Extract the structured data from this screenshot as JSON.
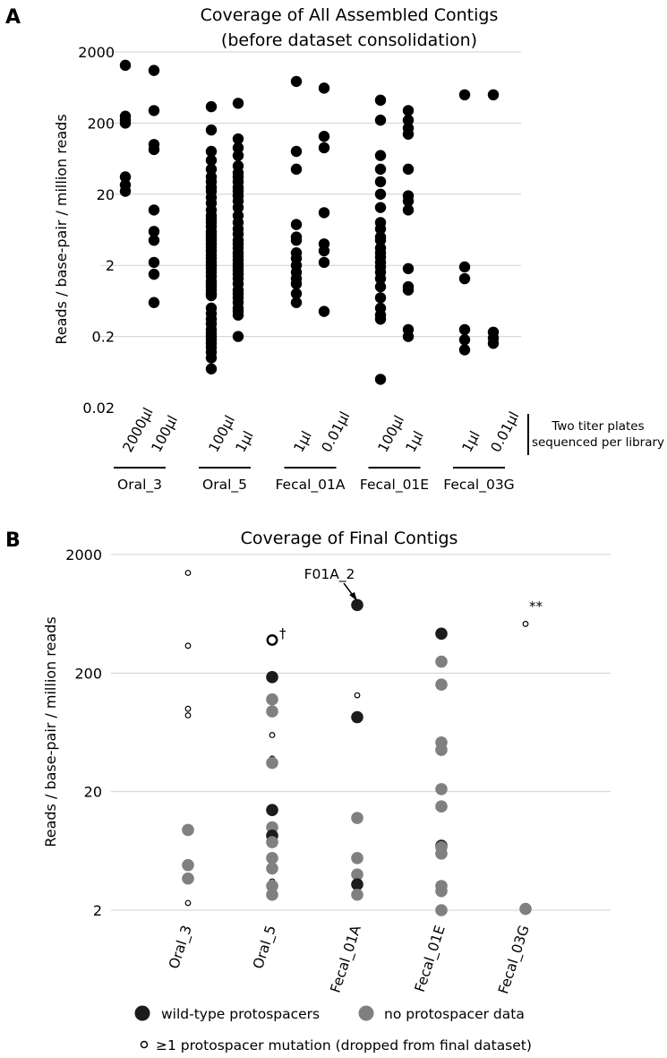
{
  "chart_data": [
    {
      "panel": "A",
      "type": "scatter",
      "title_line1": "Coverage of All Assembled Contigs",
      "title_line2": "(before dataset consolidation)",
      "ylabel": "Reads / base-pair / million reads",
      "yscale": "log",
      "ylim": [
        0.02,
        2000
      ],
      "yticks": [
        0.02,
        0.2,
        2,
        20,
        200,
        2000
      ],
      "ytick_labels": [
        "0.02",
        "0.2",
        "2",
        "20",
        "200",
        "2000"
      ],
      "grid": true,
      "side_note_line1": "Two titer plates",
      "side_note_line2": "sequenced per library",
      "groups": [
        {
          "library": "Oral_3",
          "columns": [
            {
              "label": "2000µl",
              "values": [
                1300,
                250,
                220,
                200,
                35,
                27,
                22
              ]
            },
            {
              "label": "100µl",
              "values": [
                1100,
                300,
                100,
                85,
                12,
                6,
                4.5,
                2.2,
                1.5,
                0.6
              ]
            }
          ]
        },
        {
          "library": "Oral_5",
          "columns": [
            {
              "label": "100µl",
              "values": [
                340,
                160,
                80,
                60,
                45,
                35,
                30,
                25,
                22,
                18,
                15,
                12,
                10,
                9,
                8,
                7,
                6,
                5.5,
                5,
                4.5,
                4,
                3.6,
                3.2,
                2.8,
                2.5,
                2.2,
                2,
                1.8,
                1.6,
                1.4,
                1.2,
                1.1,
                1,
                0.9,
                0.8,
                0.75,
                0.5,
                0.42,
                0.35,
                0.3,
                0.25,
                0.22,
                0.2,
                0.18,
                0.16,
                0.14,
                0.12,
                0.1,
                0.07
              ]
            },
            {
              "label": "1µl",
              "values": [
                380,
                120,
                90,
                70,
                50,
                40,
                35,
                30,
                25,
                22,
                19,
                16,
                13,
                10,
                8,
                6.5,
                5.5,
                4.5,
                4,
                3.5,
                3,
                2.7,
                2.4,
                2.1,
                1.9,
                1.7,
                1.5,
                1.3,
                1.1,
                0.9,
                0.8,
                0.7,
                0.6,
                0.5,
                0.45,
                0.4,
                0.2
              ]
            }
          ]
        },
        {
          "library": "Fecal_01A",
          "columns": [
            {
              "label": "1µl",
              "values": [
                770,
                80,
                45,
                7.5,
                5,
                4.5,
                3,
                2.5,
                2,
                1.6,
                1.3,
                1.1,
                0.8,
                0.6
              ]
            },
            {
              "label": "0.01µl",
              "values": [
                620,
                130,
                90,
                11,
                4,
                3.2,
                2.2,
                0.45
              ]
            }
          ]
        },
        {
          "library": "Fecal_01E",
          "columns": [
            {
              "label": "100µl",
              "values": [
                420,
                220,
                70,
                45,
                30,
                20,
                13,
                8,
                6.5,
                5,
                4.5,
                3.5,
                3,
                2.6,
                2.2,
                1.9,
                1.6,
                1.3,
                1,
                0.7,
                0.5,
                0.4,
                0.35,
                0.05
              ]
            },
            {
              "label": "1µl",
              "values": [
                300,
                220,
                170,
                140,
                45,
                19,
                16,
                12,
                1.8,
                1,
                0.9,
                0.25,
                0.2
              ]
            }
          ]
        },
        {
          "library": "Fecal_03G",
          "columns": [
            {
              "label": "1µl",
              "values": [
                500,
                1.9,
                1.3,
                0.25,
                0.18,
                0.13
              ]
            },
            {
              "label": "0.01µl",
              "values": [
                500,
                0.23,
                0.19,
                0.16
              ]
            }
          ]
        }
      ]
    },
    {
      "panel": "B",
      "type": "scatter",
      "title": "Coverage of Final Contigs",
      "ylabel": "Reads / base-pair / million reads",
      "yscale": "log",
      "ylim": [
        2,
        2000
      ],
      "yticks": [
        2,
        20,
        200,
        2000
      ],
      "ytick_labels": [
        "2",
        "20",
        "200",
        "2000"
      ],
      "grid": true,
      "categories": [
        "Oral_3",
        "Oral_5",
        "Fecal_01A",
        "Fecal_01E",
        "Fecal_03G"
      ],
      "legend": {
        "wild_type": "wild-type protospacers",
        "no_data": "no protospacer data",
        "mutation": "≥1 protospacer mutation (dropped from final dataset)"
      },
      "annotations": {
        "f01a": "F01A_2",
        "oral5_mark": "†",
        "fecal03g_mark": "**"
      },
      "points": [
        {
          "category": "Oral_3",
          "value": 1400,
          "kind": "mutation"
        },
        {
          "category": "Oral_3",
          "value": 340,
          "kind": "mutation"
        },
        {
          "category": "Oral_3",
          "value": 100,
          "kind": "mutation"
        },
        {
          "category": "Oral_3",
          "value": 88,
          "kind": "mutation"
        },
        {
          "category": "Oral_3",
          "value": 9.5,
          "kind": "no_data"
        },
        {
          "category": "Oral_3",
          "value": 4.8,
          "kind": "no_data"
        },
        {
          "category": "Oral_3",
          "value": 3.7,
          "kind": "no_data"
        },
        {
          "category": "Oral_3",
          "value": 2.3,
          "kind": "mutation"
        },
        {
          "category": "Oral_5",
          "value": 380,
          "kind": "mutation_large"
        },
        {
          "category": "Oral_5",
          "value": 185,
          "kind": "wild_type"
        },
        {
          "category": "Oral_5",
          "value": 120,
          "kind": "no_data"
        },
        {
          "category": "Oral_5",
          "value": 95,
          "kind": "no_data"
        },
        {
          "category": "Oral_5",
          "value": 60,
          "kind": "mutation"
        },
        {
          "category": "Oral_5",
          "value": 38,
          "kind": "mutation"
        },
        {
          "category": "Oral_5",
          "value": 35,
          "kind": "no_data"
        },
        {
          "category": "Oral_5",
          "value": 14,
          "kind": "wild_type"
        },
        {
          "category": "Oral_5",
          "value": 10,
          "kind": "no_data"
        },
        {
          "category": "Oral_5",
          "value": 8.5,
          "kind": "wild_type"
        },
        {
          "category": "Oral_5",
          "value": 7.5,
          "kind": "no_data"
        },
        {
          "category": "Oral_5",
          "value": 5.5,
          "kind": "no_data"
        },
        {
          "category": "Oral_5",
          "value": 4.5,
          "kind": "no_data"
        },
        {
          "category": "Oral_5",
          "value": 3.5,
          "kind": "mutation"
        },
        {
          "category": "Oral_5",
          "value": 3.2,
          "kind": "no_data"
        },
        {
          "category": "Oral_5",
          "value": 2.7,
          "kind": "no_data"
        },
        {
          "category": "Fecal_01A",
          "value": 750,
          "kind": "wild_type"
        },
        {
          "category": "Fecal_01A",
          "value": 130,
          "kind": "mutation"
        },
        {
          "category": "Fecal_01A",
          "value": 85,
          "kind": "wild_type"
        },
        {
          "category": "Fecal_01A",
          "value": 12,
          "kind": "no_data"
        },
        {
          "category": "Fecal_01A",
          "value": 5.5,
          "kind": "no_data"
        },
        {
          "category": "Fecal_01A",
          "value": 4,
          "kind": "no_data"
        },
        {
          "category": "Fecal_01A",
          "value": 3.3,
          "kind": "wild_type"
        },
        {
          "category": "Fecal_01A",
          "value": 2.7,
          "kind": "no_data"
        },
        {
          "category": "Fecal_01E",
          "value": 430,
          "kind": "wild_type"
        },
        {
          "category": "Fecal_01E",
          "value": 250,
          "kind": "no_data"
        },
        {
          "category": "Fecal_01E",
          "value": 160,
          "kind": "no_data"
        },
        {
          "category": "Fecal_01E",
          "value": 52,
          "kind": "no_data"
        },
        {
          "category": "Fecal_01E",
          "value": 45,
          "kind": "no_data"
        },
        {
          "category": "Fecal_01E",
          "value": 21,
          "kind": "no_data"
        },
        {
          "category": "Fecal_01E",
          "value": 15,
          "kind": "no_data"
        },
        {
          "category": "Fecal_01E",
          "value": 7,
          "kind": "wild_type"
        },
        {
          "category": "Fecal_01E",
          "value": 6.8,
          "kind": "no_data"
        },
        {
          "category": "Fecal_01E",
          "value": 6,
          "kind": "no_data"
        },
        {
          "category": "Fecal_01E",
          "value": 3.2,
          "kind": "no_data"
        },
        {
          "category": "Fecal_01E",
          "value": 2.9,
          "kind": "no_data"
        },
        {
          "category": "Fecal_01E",
          "value": 2,
          "kind": "no_data"
        },
        {
          "category": "Fecal_03G",
          "value": 520,
          "kind": "mutation"
        },
        {
          "category": "Fecal_03G",
          "value": 2.05,
          "kind": "no_data"
        }
      ]
    }
  ]
}
